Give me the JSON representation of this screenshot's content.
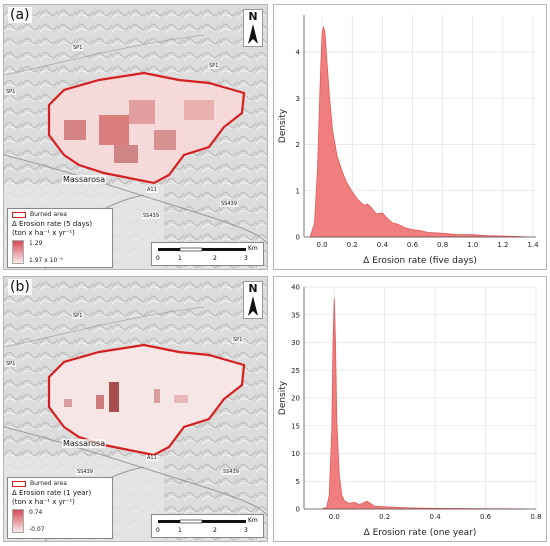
{
  "panels": [
    {
      "label": "(a)",
      "north_label": "N",
      "town": "Massarosa",
      "road_labels": [
        "SP1",
        "SP1",
        "SP1",
        "A11",
        "SS439",
        "SS439"
      ],
      "legend": {
        "burned_area": "Burned area",
        "title_line1": "Δ Erosion rate (5 days)",
        "title_line2": "(ton x ha⁻¹ x yr⁻¹)",
        "max": "1.29",
        "min": "1.97 x 10⁻⁵"
      },
      "scalebar": {
        "unit": "Km",
        "ticks": [
          "0",
          "1",
          "2",
          "3"
        ]
      }
    },
    {
      "label": "(b)",
      "north_label": "N",
      "town": "Massarosa",
      "road_labels": [
        "SP1",
        "SP1",
        "SP1",
        "A11",
        "SS439",
        "SS439"
      ],
      "legend": {
        "burned_area": "Burned area",
        "title_line1": "Δ Erosion rate (1 year)",
        "title_line2": "(ton x ha⁻¹ x yr⁻¹)",
        "max": "0.74",
        "min": "-0.07"
      },
      "scalebar": {
        "unit": "Km",
        "ticks": [
          "0",
          "1",
          "2",
          "3"
        ]
      }
    }
  ],
  "fill_color": "#f07070",
  "line_color": "#e05a5a",
  "chart_data": [
    {
      "type": "area",
      "title": "",
      "xlabel": "Δ Erosion rate (five days)",
      "ylabel": "Density",
      "xlim": [
        -0.12,
        1.42
      ],
      "ylim": [
        0,
        4.8
      ],
      "xticks": [
        "0.0",
        "0.2",
        "0.4",
        "0.6",
        "0.8",
        "1.0",
        "1.2",
        "1.4"
      ],
      "yticks": [
        "0",
        "1",
        "2",
        "3",
        "4"
      ],
      "grid": true,
      "x": [
        -0.08,
        -0.05,
        -0.03,
        -0.01,
        0.0,
        0.01,
        0.02,
        0.03,
        0.05,
        0.07,
        0.1,
        0.13,
        0.16,
        0.2,
        0.24,
        0.28,
        0.3,
        0.33,
        0.36,
        0.4,
        0.44,
        0.47,
        0.5,
        0.55,
        0.6,
        0.65,
        0.7,
        0.8,
        0.9,
        1.0,
        1.1,
        1.2,
        1.3,
        1.36
      ],
      "y": [
        0.0,
        0.3,
        1.5,
        3.6,
        4.4,
        4.55,
        4.4,
        3.9,
        3.0,
        2.3,
        1.75,
        1.45,
        1.2,
        0.98,
        0.8,
        0.68,
        0.72,
        0.62,
        0.5,
        0.52,
        0.38,
        0.3,
        0.28,
        0.2,
        0.16,
        0.14,
        0.1,
        0.08,
        0.05,
        0.05,
        0.03,
        0.02,
        0.01,
        0.0
      ]
    },
    {
      "type": "area",
      "title": "",
      "xlabel": "Δ Erosion rate (one year)",
      "ylabel": "Density",
      "xlim": [
        -0.12,
        0.8
      ],
      "ylim": [
        0,
        40
      ],
      "xticks": [
        "0.0",
        "0.2",
        "0.4",
        "0.6",
        "0.8"
      ],
      "yticks": [
        "0",
        "5",
        "10",
        "15",
        "20",
        "25",
        "30",
        "35",
        "40"
      ],
      "grid": true,
      "x": [
        -0.05,
        -0.03,
        -0.02,
        -0.01,
        -0.005,
        0.0,
        0.005,
        0.01,
        0.02,
        0.03,
        0.04,
        0.06,
        0.08,
        0.1,
        0.13,
        0.16,
        0.2,
        0.3,
        0.4,
        0.5,
        0.6,
        0.7,
        0.76
      ],
      "y": [
        0.0,
        0.3,
        2.5,
        14,
        30,
        38,
        30,
        16,
        6,
        2.5,
        1.5,
        1.0,
        1.2,
        0.8,
        1.4,
        0.5,
        0.4,
        0.2,
        0.1,
        0.08,
        0.05,
        0.03,
        0.0
      ]
    }
  ]
}
